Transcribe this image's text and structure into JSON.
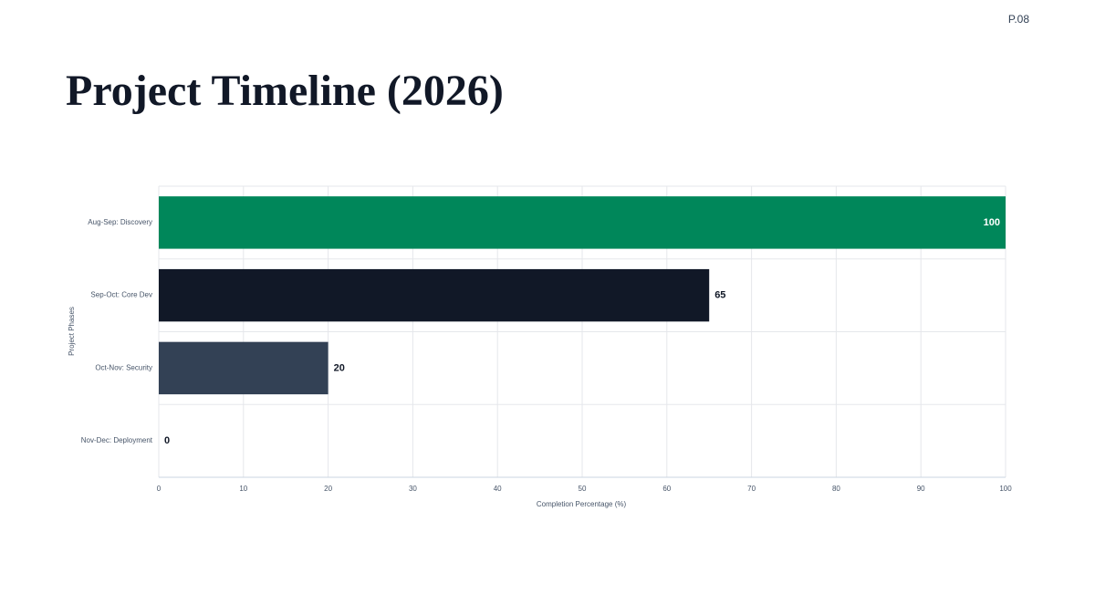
{
  "page_label": "P.08",
  "chart_data": {
    "type": "bar",
    "orientation": "horizontal",
    "title": "Project Timeline (2026)",
    "categories": [
      "Aug-Sep: Discovery",
      "Sep-Oct: Core Dev",
      "Oct-Nov: Security",
      "Nov-Dec: Deployment"
    ],
    "values": [
      100,
      65,
      20,
      0
    ],
    "colors": [
      "#00875a",
      "#111827",
      "#334155",
      "#64748b"
    ],
    "xlabel": "Completion Percentage (%)",
    "ylabel": "Project Phases",
    "xlim": [
      0,
      100
    ],
    "xticks": [
      0,
      10,
      20,
      30,
      40,
      50,
      60,
      70,
      80,
      90,
      100
    ],
    "grid": true
  }
}
